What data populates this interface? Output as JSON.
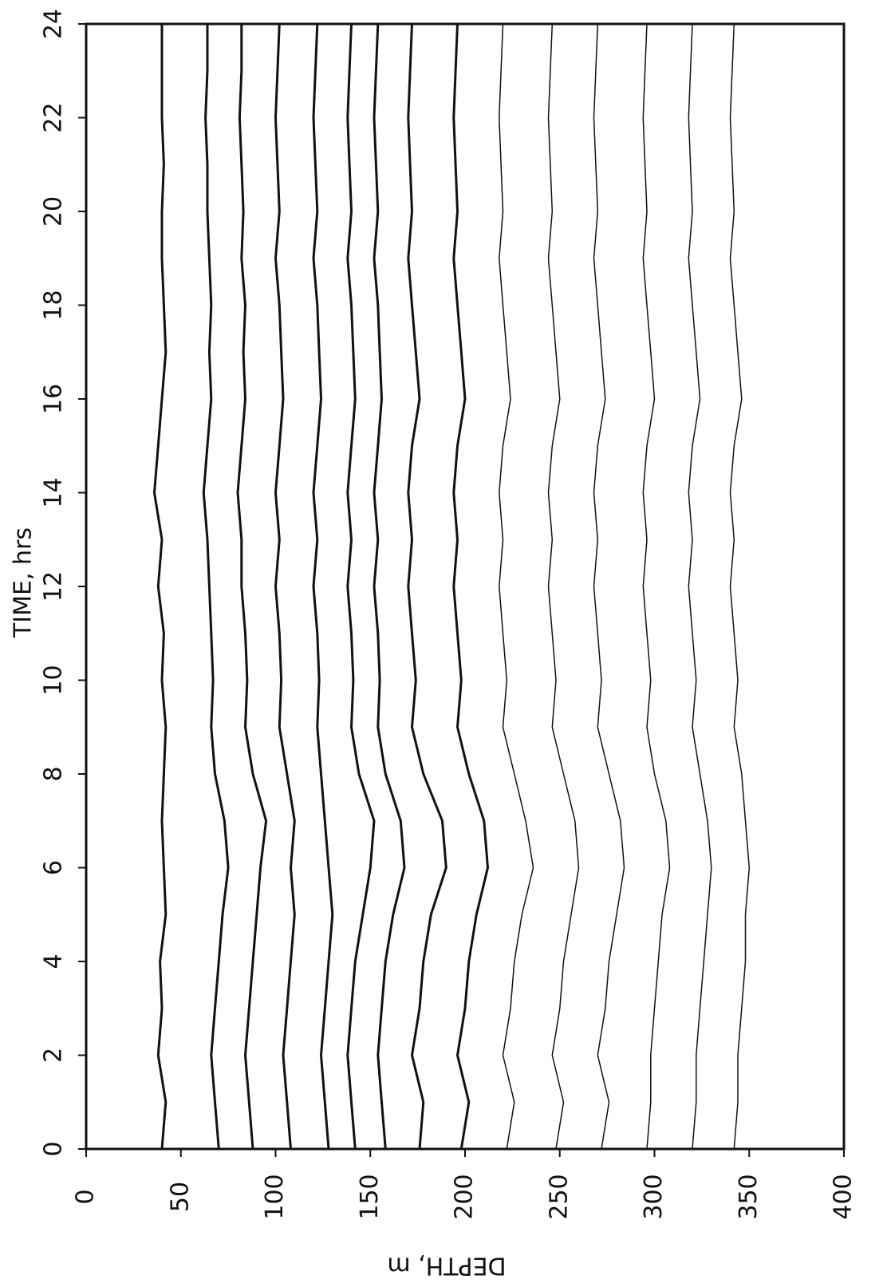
{
  "chart_data": {
    "type": "line",
    "xlabel": "TIME, hrs",
    "ylabel": "DEPTH, m",
    "x": [
      0,
      1,
      2,
      3,
      4,
      5,
      6,
      7,
      8,
      9,
      10,
      11,
      12,
      13,
      14,
      15,
      16,
      17,
      18,
      19,
      20,
      21,
      22,
      23,
      24
    ],
    "xlim": [
      0,
      24
    ],
    "xticks": [
      0,
      2,
      4,
      6,
      8,
      10,
      12,
      14,
      16,
      18,
      20,
      22,
      24
    ],
    "ylim": [
      0,
      400
    ],
    "yticks": [
      0,
      50,
      100,
      150,
      200,
      250,
      300,
      350,
      400
    ],
    "inverted_y": true,
    "series": [
      {
        "color": "#111111",
        "values": [
          40,
          42,
          38,
          40,
          39,
          42,
          41,
          40,
          41,
          42,
          40,
          41,
          38,
          40,
          36,
          38,
          40,
          42,
          41,
          40,
          40,
          41,
          40,
          40,
          40
        ]
      },
      {
        "color": "#111111",
        "values": [
          70,
          68,
          66,
          68,
          70,
          72,
          75,
          73,
          68,
          66,
          67,
          66,
          65,
          64,
          62,
          64,
          66,
          65,
          66,
          65,
          64,
          64,
          63,
          64,
          64
        ]
      },
      {
        "color": "#111111",
        "values": [
          88,
          86,
          84,
          86,
          88,
          90,
          92,
          95,
          88,
          84,
          85,
          84,
          82,
          82,
          80,
          82,
          84,
          83,
          84,
          82,
          83,
          82,
          81,
          82,
          82
        ]
      },
      {
        "color": "#111111",
        "values": [
          108,
          106,
          104,
          106,
          108,
          110,
          108,
          110,
          106,
          102,
          103,
          102,
          100,
          102,
          100,
          102,
          104,
          103,
          102,
          100,
          102,
          101,
          100,
          101,
          102
        ]
      },
      {
        "color": "#111111",
        "values": [
          128,
          126,
          124,
          126,
          128,
          130,
          128,
          126,
          124,
          122,
          123,
          122,
          120,
          122,
          120,
          122,
          124,
          123,
          122,
          120,
          122,
          121,
          120,
          121,
          122
        ]
      },
      {
        "color": "#111111",
        "values": [
          142,
          140,
          138,
          140,
          142,
          146,
          150,
          152,
          144,
          140,
          141,
          140,
          138,
          140,
          138,
          140,
          142,
          141,
          140,
          138,
          140,
          139,
          138,
          139,
          140
        ]
      },
      {
        "color": "#111111",
        "values": [
          158,
          156,
          154,
          156,
          158,
          162,
          168,
          166,
          158,
          154,
          155,
          154,
          152,
          154,
          152,
          154,
          156,
          155,
          154,
          152,
          154,
          153,
          152,
          153,
          154
        ]
      },
      {
        "color": "#111111",
        "values": [
          176,
          178,
          172,
          176,
          178,
          182,
          190,
          188,
          178,
          172,
          174,
          172,
          170,
          172,
          170,
          172,
          176,
          174,
          172,
          170,
          172,
          171,
          170,
          171,
          172
        ]
      },
      {
        "color": "#111111",
        "values": [
          198,
          202,
          196,
          200,
          202,
          206,
          212,
          210,
          202,
          196,
          198,
          196,
          194,
          196,
          194,
          196,
          200,
          198,
          196,
          194,
          196,
          195,
          194,
          195,
          196
        ]
      },
      {
        "color": "#111111",
        "values": [
          222,
          226,
          220,
          224,
          226,
          230,
          236,
          232,
          226,
          220,
          222,
          220,
          218,
          220,
          218,
          220,
          224,
          222,
          220,
          218,
          220,
          219,
          218,
          219,
          220
        ]
      },
      {
        "color": "#111111",
        "values": [
          248,
          252,
          246,
          250,
          252,
          256,
          260,
          258,
          252,
          246,
          248,
          246,
          244,
          246,
          244,
          246,
          250,
          248,
          246,
          244,
          246,
          245,
          244,
          245,
          246
        ]
      },
      {
        "color": "#111111",
        "values": [
          272,
          276,
          270,
          274,
          276,
          280,
          284,
          282,
          276,
          270,
          272,
          270,
          268,
          270,
          268,
          270,
          274,
          272,
          270,
          268,
          270,
          269,
          268,
          269,
          270
        ]
      },
      {
        "color": "#111111",
        "values": [
          296,
          298,
          298,
          300,
          302,
          304,
          308,
          306,
          300,
          296,
          298,
          296,
          294,
          296,
          294,
          296,
          300,
          298,
          296,
          294,
          296,
          295,
          294,
          295,
          296
        ]
      },
      {
        "color": "#111111",
        "values": [
          320,
          322,
          322,
          324,
          326,
          328,
          330,
          328,
          324,
          320,
          322,
          320,
          318,
          320,
          318,
          320,
          324,
          322,
          320,
          318,
          320,
          319,
          318,
          319,
          320
        ]
      },
      {
        "color": "#111111",
        "values": [
          342,
          344,
          344,
          346,
          348,
          348,
          350,
          348,
          346,
          342,
          344,
          342,
          340,
          342,
          340,
          342,
          346,
          344,
          342,
          340,
          342,
          341,
          340,
          341,
          342
        ]
      }
    ]
  }
}
